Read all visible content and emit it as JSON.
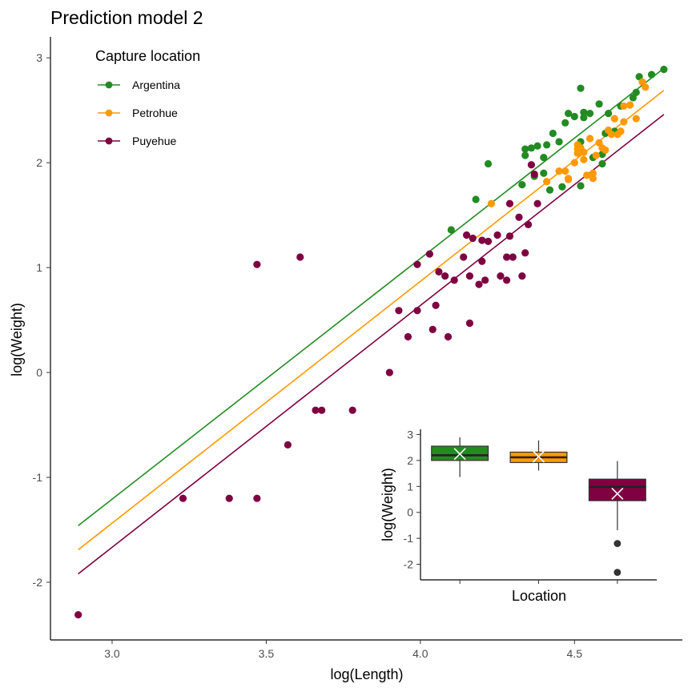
{
  "chart_data": [
    {
      "type": "scatter",
      "title": "Prediction model 2",
      "xlabel": "log(Length)",
      "ylabel": "log(Weight)",
      "xlim": [
        2.8,
        4.85
      ],
      "ylim": [
        -2.55,
        3.2
      ],
      "xticks": [
        "3.0",
        "3.5",
        "4.0",
        "4.5"
      ],
      "yticks": [
        "-2",
        "-1",
        "0",
        "1",
        "2",
        "3"
      ],
      "grid": false,
      "legend": {
        "title": "Capture location",
        "position": "top-left"
      },
      "series": [
        {
          "name": "Argentina",
          "color": "#228B22",
          "fit_line": {
            "x": [
              2.89,
              4.79
            ],
            "y": [
              -1.46,
              2.9
            ]
          },
          "points": [
            [
              4.1,
              1.36
            ],
            [
              4.18,
              1.65
            ],
            [
              4.22,
              1.99
            ],
            [
              4.33,
              1.79
            ],
            [
              4.34,
              2.07
            ],
            [
              4.34,
              2.13
            ],
            [
              4.36,
              2.14
            ],
            [
              4.37,
              1.87
            ],
            [
              4.38,
              2.16
            ],
            [
              4.4,
              1.9
            ],
            [
              4.4,
              2.05
            ],
            [
              4.41,
              2.17
            ],
            [
              4.42,
              1.74
            ],
            [
              4.43,
              2.28
            ],
            [
              4.45,
              2.2
            ],
            [
              4.46,
              1.77
            ],
            [
              4.47,
              2.38
            ],
            [
              4.48,
              2.47
            ],
            [
              4.5,
              2.44
            ],
            [
              4.52,
              2.71
            ],
            [
              4.52,
              1.78
            ],
            [
              4.52,
              2.2
            ],
            [
              4.53,
              2.43
            ],
            [
              4.53,
              2.48
            ],
            [
              4.55,
              2.47
            ],
            [
              4.56,
              2.05
            ],
            [
              4.58,
              2.56
            ],
            [
              4.59,
              1.99
            ],
            [
              4.59,
              2.08
            ],
            [
              4.6,
              2.28
            ],
            [
              4.61,
              2.47
            ],
            [
              4.63,
              2.3
            ],
            [
              4.65,
              2.54
            ],
            [
              4.69,
              2.62
            ],
            [
              4.7,
              2.67
            ],
            [
              4.71,
              2.82
            ],
            [
              4.75,
              2.84
            ],
            [
              4.79,
              2.89
            ]
          ]
        },
        {
          "name": "Petrohue",
          "color": "#FF9900",
          "fit_line": {
            "x": [
              2.89,
              4.79
            ],
            "y": [
              -1.69,
              2.69
            ]
          },
          "points": [
            [
              4.23,
              1.61
            ],
            [
              4.41,
              1.82
            ],
            [
              4.45,
              1.92
            ],
            [
              4.47,
              1.92
            ],
            [
              4.48,
              1.85
            ],
            [
              4.48,
              1.84
            ],
            [
              4.5,
              2.0
            ],
            [
              4.51,
              2.13
            ],
            [
              4.51,
              2.09
            ],
            [
              4.51,
              2.17
            ],
            [
              4.52,
              2.14
            ],
            [
              4.53,
              2.03
            ],
            [
              4.53,
              2.1
            ],
            [
              4.54,
              1.88
            ],
            [
              4.55,
              2.23
            ],
            [
              4.56,
              1.85
            ],
            [
              4.56,
              1.9
            ],
            [
              4.57,
              2.07
            ],
            [
              4.58,
              2.19
            ],
            [
              4.59,
              2.14
            ],
            [
              4.6,
              2.12
            ],
            [
              4.61,
              2.31
            ],
            [
              4.62,
              2.27
            ],
            [
              4.63,
              2.42
            ],
            [
              4.64,
              2.27
            ],
            [
              4.65,
              2.3
            ],
            [
              4.66,
              2.39
            ],
            [
              4.66,
              2.54
            ],
            [
              4.68,
              2.55
            ],
            [
              4.7,
              2.42
            ],
            [
              4.72,
              2.77
            ],
            [
              4.73,
              2.72
            ]
          ]
        },
        {
          "name": "Puyehue",
          "color": "#7F0040",
          "fit_line": {
            "x": [
              2.89,
              4.79
            ],
            "y": [
              -1.92,
              2.46
            ]
          },
          "points": [
            [
              2.89,
              -2.31
            ],
            [
              3.23,
              -1.2
            ],
            [
              3.38,
              -1.2
            ],
            [
              3.47,
              -1.2
            ],
            [
              3.47,
              1.03
            ],
            [
              3.57,
              -0.69
            ],
            [
              3.61,
              1.1
            ],
            [
              3.66,
              -0.36
            ],
            [
              3.68,
              -0.36
            ],
            [
              3.78,
              -0.36
            ],
            [
              3.9,
              0.0
            ],
            [
              3.93,
              0.59
            ],
            [
              3.96,
              0.34
            ],
            [
              3.99,
              0.59
            ],
            [
              3.99,
              1.03
            ],
            [
              4.03,
              1.13
            ],
            [
              4.04,
              0.41
            ],
            [
              4.05,
              0.64
            ],
            [
              4.06,
              0.96
            ],
            [
              4.08,
              0.92
            ],
            [
              4.09,
              0.34
            ],
            [
              4.11,
              0.88
            ],
            [
              4.14,
              1.1
            ],
            [
              4.15,
              1.31
            ],
            [
              4.16,
              0.92
            ],
            [
              4.16,
              0.47
            ],
            [
              4.17,
              1.28
            ],
            [
              4.19,
              0.84
            ],
            [
              4.2,
              1.06
            ],
            [
              4.2,
              1.26
            ],
            [
              4.21,
              0.88
            ],
            [
              4.22,
              1.25
            ],
            [
              4.25,
              1.31
            ],
            [
              4.26,
              0.92
            ],
            [
              4.28,
              1.1
            ],
            [
              4.28,
              0.88
            ],
            [
              4.29,
              1.3
            ],
            [
              4.29,
              1.61
            ],
            [
              4.3,
              1.1
            ],
            [
              4.32,
              1.48
            ],
            [
              4.33,
              0.92
            ],
            [
              4.34,
              1.14
            ],
            [
              4.35,
              1.41
            ],
            [
              4.36,
              1.98
            ],
            [
              4.37,
              1.89
            ],
            [
              4.38,
              1.61
            ]
          ]
        }
      ]
    },
    {
      "type": "box",
      "xlabel": "Location",
      "ylabel": "log(Weight)",
      "ylim": [
        -2.6,
        3.2
      ],
      "yticks": [
        "-2",
        "-1",
        "0",
        "1",
        "2",
        "3"
      ],
      "boxes": [
        {
          "name": "Argentina",
          "color": "#228B22",
          "whisker_low": 1.36,
          "q1": 2.0,
          "median": 2.2,
          "q3": 2.55,
          "whisker_high": 2.89,
          "mean": 2.25,
          "outliers": []
        },
        {
          "name": "Petrohue",
          "color": "#FF9900",
          "whisker_low": 1.61,
          "q1": 1.92,
          "median": 2.12,
          "q3": 2.32,
          "whisker_high": 2.77,
          "mean": 2.15,
          "outliers": []
        },
        {
          "name": "Puyehue",
          "color": "#7F0040",
          "whisker_low": -0.69,
          "q1": 0.45,
          "median": 0.98,
          "q3": 1.28,
          "whisker_high": 1.98,
          "mean": 0.72,
          "outliers": [
            -1.2,
            -2.31
          ]
        }
      ]
    }
  ]
}
